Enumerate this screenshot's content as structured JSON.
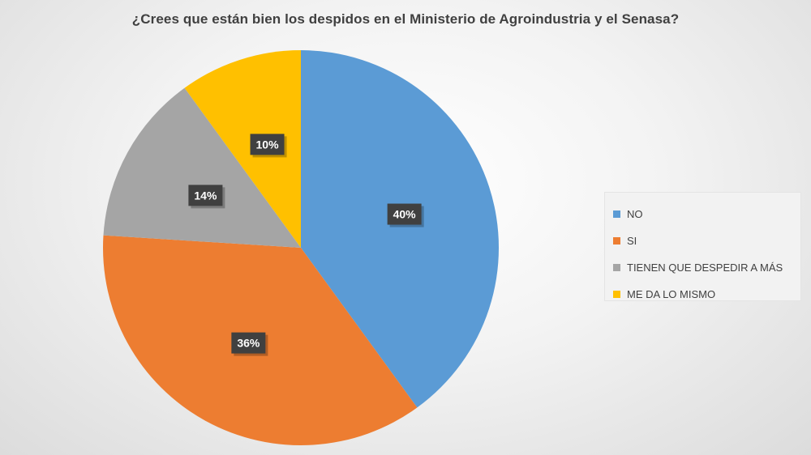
{
  "chart_data": {
    "type": "pie",
    "title": "¿Crees que están bien los despidos en el Ministerio de Agroindustria y el Senasa?",
    "slices": [
      {
        "label": "NO",
        "value": 40,
        "display": "40%",
        "color": "#5b9bd5"
      },
      {
        "label": "SI",
        "value": 36,
        "display": "36%",
        "color": "#ed7d31"
      },
      {
        "label": "TIENEN QUE DESPEDIR A MÁS",
        "value": 14,
        "display": "14%",
        "color": "#a5a5a5"
      },
      {
        "label": "ME DA LO MISMO",
        "value": 10,
        "display": "10%",
        "color": "#ffc000"
      }
    ],
    "legend_position": "right"
  }
}
